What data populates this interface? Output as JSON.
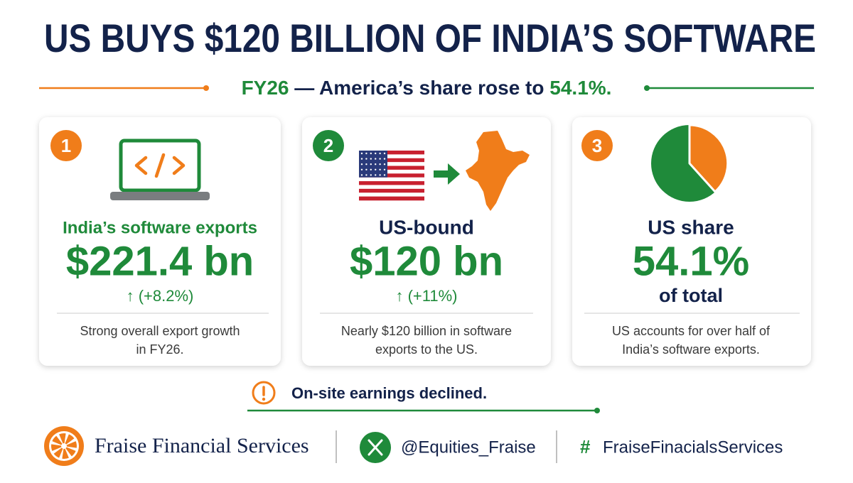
{
  "header": {
    "title": "US BUYS $120 BILLION OF INDIA’S SOFTWARE",
    "subtitle": {
      "lead": "FY26",
      "middle": "— America’s share rose to",
      "end": "54.1%."
    }
  },
  "cards": [
    {
      "number": "1",
      "heading": "India’s software exports",
      "value": "$221.4 bn",
      "change": "↑ (+8.2%)",
      "note": [
        "Strong overall export growth",
        "in FY26."
      ]
    },
    {
      "number": "2",
      "heading": "US-bound",
      "value": "$120 bn",
      "change": "↑ (+11%)",
      "note": [
        "Nearly $120 billion in software",
        "exports to the US."
      ]
    },
    {
      "number": "3",
      "heading": "US share",
      "value": "54.1%",
      "change": "of total",
      "note": [
        "US accounts for over half of",
        "India’s software exports."
      ]
    }
  ],
  "alert": "On-site earnings declined.",
  "footer": {
    "brand": "Fraise Financial Services",
    "handle": "@Equities_Fraise",
    "hash": "#",
    "tag": "FraiseFinacialsServices"
  }
}
